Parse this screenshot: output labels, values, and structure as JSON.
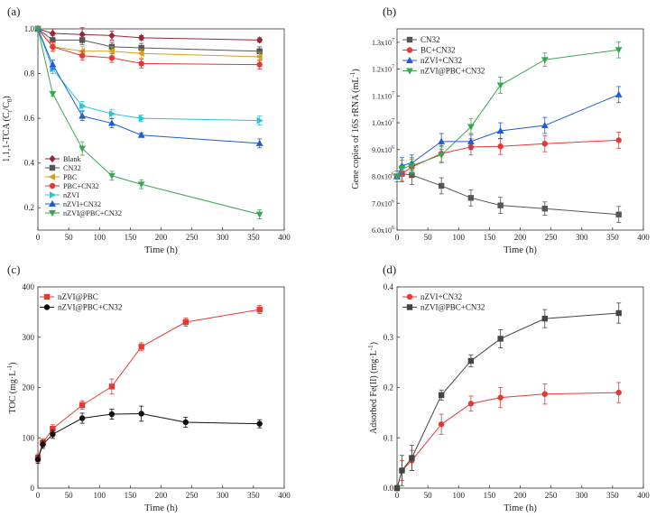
{
  "figure": {
    "panels": [
      "(a)",
      "(b)",
      "(c)",
      "(d)"
    ]
  },
  "chart_data": [
    {
      "panel": "(a)",
      "type": "line",
      "title": "",
      "xlabel": "Time (h)",
      "ylabel": "1,1,1-TCA (C",
      "ylabel_parts": [
        "1,1,1-TCA (C",
        "t",
        "/C",
        "0",
        ")"
      ],
      "xlim": [
        0,
        400
      ],
      "ylim": [
        0.1,
        1.0
      ],
      "xticks": [
        0,
        50,
        100,
        150,
        200,
        250,
        300,
        350,
        400
      ],
      "xtick_labels": [
        "0",
        "50",
        "100",
        "150",
        "200",
        "250",
        "300",
        "350",
        "400"
      ],
      "yticks": [
        0.2,
        0.4,
        0.6,
        0.8,
        1.0
      ],
      "ytick_labels": [
        "0.2",
        "0.4",
        "0.6",
        "0.8",
        "1.0"
      ],
      "legend_position": "bottom-left",
      "x": [
        0,
        24,
        72,
        120,
        168,
        360
      ],
      "series": [
        {
          "name": "Blank",
          "color": "#9b2335",
          "marker": "diamond",
          "values": [
            1.0,
            0.98,
            0.975,
            0.97,
            0.96,
            0.95
          ],
          "err": [
            0.01,
            0.02,
            0.03,
            0.02,
            0.01,
            0.01
          ]
        },
        {
          "name": "CN32",
          "color": "#555555",
          "marker": "square",
          "values": [
            1.0,
            0.95,
            0.95,
            0.92,
            0.915,
            0.9
          ],
          "err": [
            0.01,
            0.02,
            0.02,
            0.02,
            0.02,
            0.02
          ]
        },
        {
          "name": "PBC",
          "color": "#d4a017",
          "marker": "triangle-left",
          "values": [
            1.0,
            0.92,
            0.9,
            0.9,
            0.89,
            0.875
          ],
          "err": [
            0.01,
            0.02,
            0.02,
            0.02,
            0.02,
            0.02
          ]
        },
        {
          "name": "PBC+CN32",
          "color": "#e53935",
          "marker": "circle",
          "values": [
            1.0,
            0.92,
            0.88,
            0.87,
            0.845,
            0.84
          ],
          "err": [
            0.01,
            0.02,
            0.02,
            0.02,
            0.02,
            0.02
          ]
        },
        {
          "name": "nZVI",
          "color": "#26c6da",
          "marker": "triangle-right",
          "values": [
            1.0,
            0.82,
            0.655,
            0.62,
            0.6,
            0.59
          ],
          "err": [
            0.01,
            0.02,
            0.02,
            0.02,
            0.015,
            0.02
          ]
        },
        {
          "name": "nZVI+CN32",
          "color": "#1e5bd6",
          "marker": "triangle-up",
          "values": [
            1.0,
            0.84,
            0.61,
            0.578,
            0.525,
            0.488
          ],
          "err": [
            0.01,
            0.02,
            0.02,
            0.02,
            0.01,
            0.02
          ]
        },
        {
          "name": "nZVI@PBC+CN32",
          "color": "#3aa655",
          "marker": "triangle-down",
          "values": [
            1.0,
            0.71,
            0.465,
            0.343,
            0.305,
            0.17
          ],
          "err": [
            0.01,
            0.01,
            0.03,
            0.02,
            0.02,
            0.02
          ]
        }
      ]
    },
    {
      "panel": "(b)",
      "type": "line",
      "title": "",
      "xlabel": "Time (h)",
      "ylabel": "Gene copies of 16S rRNA (mL",
      "ylabel_parts": [
        "Gene copies of 16S rRNA (mL",
        "-1",
        ")"
      ],
      "xlim": [
        0,
        400
      ],
      "ylim": [
        6.0,
        13.5
      ],
      "xticks": [
        0,
        50,
        100,
        150,
        200,
        250,
        300,
        350,
        400
      ],
      "xtick_labels": [
        "0",
        "50",
        "100",
        "150",
        "200",
        "250",
        "300",
        "350",
        "400"
      ],
      "yticks": [
        6.0,
        7.0,
        8.0,
        9.0,
        10.0,
        11.0,
        12.0,
        13.0
      ],
      "ytick_mantissas": [
        "6.0x10",
        "7.0x10",
        "8.0x10",
        "9.0x10",
        "1.0x10",
        "1.1x10",
        "1.2x10",
        "1.3x10"
      ],
      "ytick_exponents": [
        "6",
        "6",
        "6",
        "6",
        "7",
        "7",
        "7",
        "7"
      ],
      "y_unit_note": "values in units of 10^6 per mL",
      "legend_position": "top-left",
      "x": [
        0,
        8,
        24,
        72,
        120,
        168,
        240,
        360
      ],
      "series": [
        {
          "name": "CN32",
          "color": "#555555",
          "marker": "square",
          "values": [
            8.0,
            8.1,
            8.05,
            7.65,
            7.2,
            6.92,
            6.8,
            6.58
          ],
          "err": [
            0.2,
            0.3,
            0.35,
            0.3,
            0.3,
            0.3,
            0.25,
            0.3
          ]
        },
        {
          "name": "BC+CN32",
          "color": "#e53935",
          "marker": "circle",
          "values": [
            8.0,
            8.1,
            8.35,
            8.85,
            9.1,
            9.12,
            9.22,
            9.35
          ],
          "err": [
            0.2,
            0.25,
            0.3,
            0.3,
            0.3,
            0.3,
            0.3,
            0.3
          ]
        },
        {
          "name": "nZVI+CN32",
          "color": "#1e5bd6",
          "marker": "triangle-up",
          "values": [
            8.0,
            8.4,
            8.5,
            9.3,
            9.3,
            9.7,
            9.9,
            11.05
          ],
          "err": [
            0.2,
            0.3,
            0.3,
            0.3,
            0.3,
            0.3,
            0.3,
            0.3
          ]
        },
        {
          "name": "nZVI@PBC+CN32",
          "color": "#3aa655",
          "marker": "triangle-down",
          "values": [
            8.0,
            8.3,
            8.4,
            8.8,
            9.85,
            11.4,
            12.35,
            12.72
          ],
          "err": [
            0.2,
            0.3,
            0.3,
            0.3,
            0.3,
            0.3,
            0.25,
            0.3
          ]
        }
      ]
    },
    {
      "panel": "(c)",
      "type": "line",
      "title": "",
      "xlabel": "Time (h)",
      "ylabel": "TOC (mg·L",
      "ylabel_parts": [
        "TOC (mg·L",
        "-1",
        ")"
      ],
      "xlim": [
        0,
        400
      ],
      "ylim": [
        0,
        400
      ],
      "xticks": [
        0,
        50,
        100,
        150,
        200,
        250,
        300,
        350,
        400
      ],
      "xtick_labels": [
        "0",
        "50",
        "100",
        "150",
        "200",
        "250",
        "300",
        "350",
        "400"
      ],
      "yticks": [
        0,
        100,
        200,
        300,
        400
      ],
      "ytick_labels": [
        "0",
        "100",
        "200",
        "300",
        "400"
      ],
      "legend_position": "top-left",
      "x": [
        0,
        8,
        24,
        72,
        120,
        168,
        240,
        360
      ],
      "series": [
        {
          "name": "nZVI@PBC",
          "color": "#e53935",
          "marker": "square",
          "values": [
            60,
            90,
            118,
            165,
            202,
            281,
            330,
            355
          ],
          "err": [
            8,
            8,
            8,
            8,
            15,
            8,
            8,
            8
          ]
        },
        {
          "name": "nZVI@PBC+CN32",
          "color": "#111111",
          "marker": "circle",
          "values": [
            57,
            87,
            107,
            139,
            147,
            148,
            131,
            128
          ],
          "err": [
            8,
            8,
            8,
            10,
            10,
            15,
            10,
            8
          ]
        }
      ]
    },
    {
      "panel": "(d)",
      "type": "line",
      "title": "",
      "xlabel": "Time (h)",
      "ylabel": "Adsorbed Fe(II) (mg·L",
      "ylabel_parts": [
        "Adsorbed Fe(II) (mg·L",
        "-1",
        ")"
      ],
      "xlim": [
        0,
        400
      ],
      "ylim": [
        0,
        0.4
      ],
      "xticks": [
        0,
        50,
        100,
        150,
        200,
        250,
        300,
        350,
        400
      ],
      "xtick_labels": [
        "0",
        "50",
        "100",
        "150",
        "200",
        "250",
        "300",
        "350",
        "400"
      ],
      "yticks": [
        0.0,
        0.1,
        0.2,
        0.3,
        0.4
      ],
      "ytick_labels": [
        "0.0",
        "0.1",
        "0.2",
        "0.3",
        "0.4"
      ],
      "legend_position": "top-left",
      "x": [
        0,
        8,
        24,
        72,
        120,
        168,
        240,
        360
      ],
      "series": [
        {
          "name": "nZVI+CN32",
          "color": "#e53935",
          "marker": "circle",
          "values": [
            0.0,
            0.035,
            0.055,
            0.127,
            0.168,
            0.18,
            0.187,
            0.19
          ],
          "err": [
            0.005,
            0.02,
            0.02,
            0.02,
            0.015,
            0.02,
            0.02,
            0.02
          ]
        },
        {
          "name": "nZVI@PBC+CN32",
          "color": "#444444",
          "marker": "square",
          "values": [
            0.0,
            0.035,
            0.06,
            0.185,
            0.253,
            0.297,
            0.337,
            0.348
          ],
          "err": [
            0.005,
            0.03,
            0.025,
            0.01,
            0.012,
            0.018,
            0.018,
            0.02
          ]
        }
      ]
    }
  ]
}
